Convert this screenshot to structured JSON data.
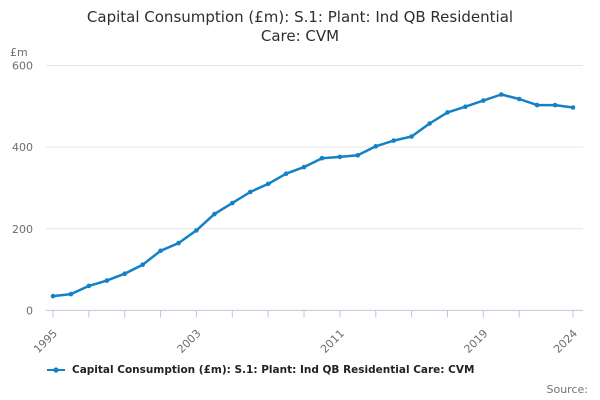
{
  "title": {
    "line1": "Capital Consumption (£m): S.1: Plant: Ind QB Residential",
    "line2": "Care: CVM"
  },
  "y_axis": {
    "unit_label": "£m",
    "ticks": [
      0,
      200,
      400,
      600
    ]
  },
  "x_axis": {
    "tick_years": [
      1995,
      1997,
      1999,
      2001,
      2003,
      2005,
      2007,
      2009,
      2011,
      2013,
      2015,
      2017,
      2019,
      2021,
      2024
    ],
    "label_years": [
      1995,
      2003,
      2011,
      2019,
      2024
    ]
  },
  "legend": {
    "label": "Capital Consumption (£m): S.1: Plant: Ind QB Residential Care: CVM"
  },
  "source": {
    "label": "Source:"
  },
  "colors": {
    "line": "#1381c5",
    "grid": "#e6e6e6",
    "axis": "#b9c8da",
    "tick_text": "#6e6e6e",
    "title_text": "#2e2e2e",
    "legend_text": "#222222",
    "source_text": "#737373"
  },
  "chart_data": {
    "type": "line",
    "title": "Capital Consumption (£m): S.1: Plant: Ind QB Residential Care: CVM",
    "xlabel": "",
    "ylabel": "£m",
    "ylim": [
      0,
      600
    ],
    "y_ticks": [
      0,
      200,
      400,
      600
    ],
    "grid": true,
    "legend_position": "bottom",
    "marker": "circle",
    "x": [
      1995,
      1996,
      1997,
      1998,
      1999,
      2000,
      2001,
      2002,
      2003,
      2004,
      2005,
      2006,
      2007,
      2008,
      2009,
      2010,
      2011,
      2012,
      2013,
      2014,
      2015,
      2016,
      2017,
      2018,
      2019,
      2020,
      2021,
      2022,
      2023,
      2024
    ],
    "series": [
      {
        "name": "Capital Consumption (£m): S.1: Plant: Ind QB Residential Care: CVM",
        "values": [
          35,
          40,
          60,
          73,
          90,
          112,
          146,
          165,
          196,
          236,
          263,
          290,
          310,
          335,
          351,
          373,
          376,
          380,
          402,
          416,
          426,
          458,
          485,
          499,
          514,
          529,
          518,
          503,
          503,
          497
        ]
      }
    ]
  }
}
